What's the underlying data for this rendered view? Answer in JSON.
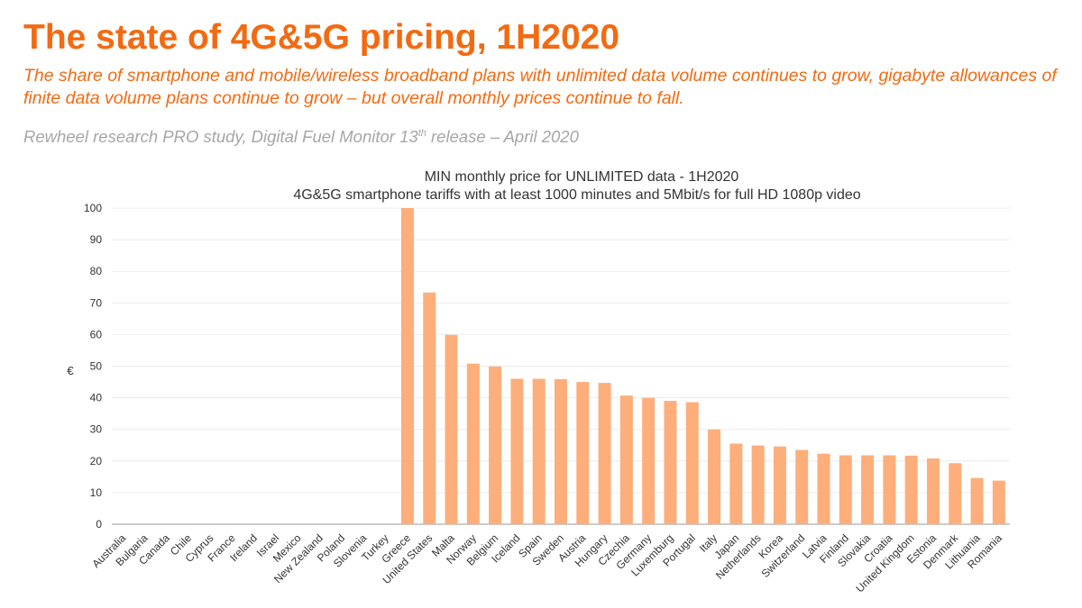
{
  "header": {
    "title": "The state of 4G&5G pricing, 1H2020",
    "subtitle": "The share of smartphone and mobile/wireless broadband plans with unlimited data volume continues to grow, gigabyte allowances of finite data volume plans continue to grow – but overall monthly prices continue to fall.",
    "source_prefix": "Rewheel research PRO study, Digital Fuel Monitor 13",
    "source_sup": "th",
    "source_suffix": " release – April 2020"
  },
  "chart_data": {
    "type": "bar",
    "title": "MIN monthly price for UNLIMITED data - 1H2020",
    "subtitle": "4G&5G smartphone tariffs with at least 1000 minutes and 5Mbit/s for full HD 1080p video",
    "ylabel": "€",
    "xlabel": "",
    "ylim": [
      0,
      100
    ],
    "yticks": [
      0,
      10,
      20,
      30,
      40,
      50,
      60,
      70,
      80,
      90,
      100
    ],
    "grid": true,
    "bar_color": "#fdae7b",
    "categories": [
      "Australia",
      "Bulgaria",
      "Canada",
      "Chile",
      "Cyprus",
      "France",
      "Ireland",
      "Israel",
      "Mexico",
      "New Zealand",
      "Poland",
      "Slovenia",
      "Turkey",
      "Greece",
      "United States",
      "Malta",
      "Norway",
      "Belgium",
      "Iceland",
      "Spain",
      "Sweden",
      "Austria",
      "Hungary",
      "Czechia",
      "Germany",
      "Luxemburg",
      "Portugal",
      "Italy",
      "Japan",
      "Netherlands",
      "Korea",
      "Switzerland",
      "Latvia",
      "Finland",
      "Slovakia",
      "Croatia",
      "United Kingdom",
      "Estonia",
      "Denmark",
      "Lithuania",
      "Romania"
    ],
    "values": [
      null,
      null,
      null,
      null,
      null,
      null,
      null,
      null,
      null,
      null,
      null,
      null,
      null,
      100,
      73.3,
      59.9,
      50.8,
      49.9,
      46,
      46,
      45.9,
      45,
      44.7,
      40.7,
      40,
      39,
      38.6,
      30,
      25.5,
      24.9,
      24.6,
      23.5,
      22.3,
      21.8,
      21.8,
      21.8,
      21.7,
      20.8,
      19.3,
      14.6,
      13.8
    ]
  }
}
